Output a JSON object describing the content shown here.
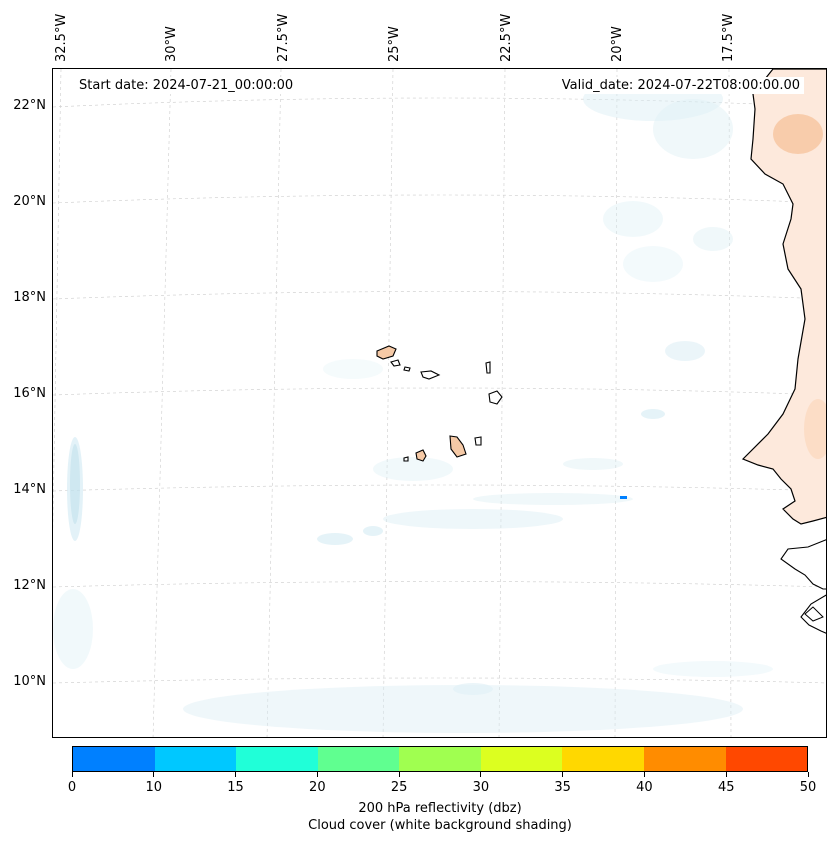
{
  "map": {
    "start_date_text": "Start date: 2024-07-21_00:00:00",
    "valid_date_text": "Valid_date: 2024-07-22T08:00:00.00",
    "lat_ticks": [
      "22°N",
      "20°N",
      "18°N",
      "16°N",
      "14°N",
      "12°N",
      "10°N"
    ],
    "lon_ticks": [
      "32.5°W",
      "30°W",
      "27.5°W",
      "25°W",
      "22.5°W",
      "20°W",
      "17.5°W"
    ],
    "lat_range": [
      8.9,
      22.8
    ],
    "lon_range": [
      -32.6,
      -15.9
    ],
    "grid": true,
    "land_color": "#f5c9a6",
    "cloud_color": "#d8edf4",
    "coast_color": "#000000"
  },
  "colorbar": {
    "ticks": [
      "0",
      "10",
      "15",
      "20",
      "25",
      "30",
      "35",
      "40",
      "45",
      "50"
    ],
    "colors": [
      "#0080ff",
      "#00c8ff",
      "#20ffd8",
      "#60ff90",
      "#a0ff50",
      "#dcff20",
      "#ffd800",
      "#ff8c00",
      "#ff4800"
    ],
    "label": "200 hPa reflectivity (dbz)",
    "sublabel": "Cloud cover (white background shading)"
  }
}
